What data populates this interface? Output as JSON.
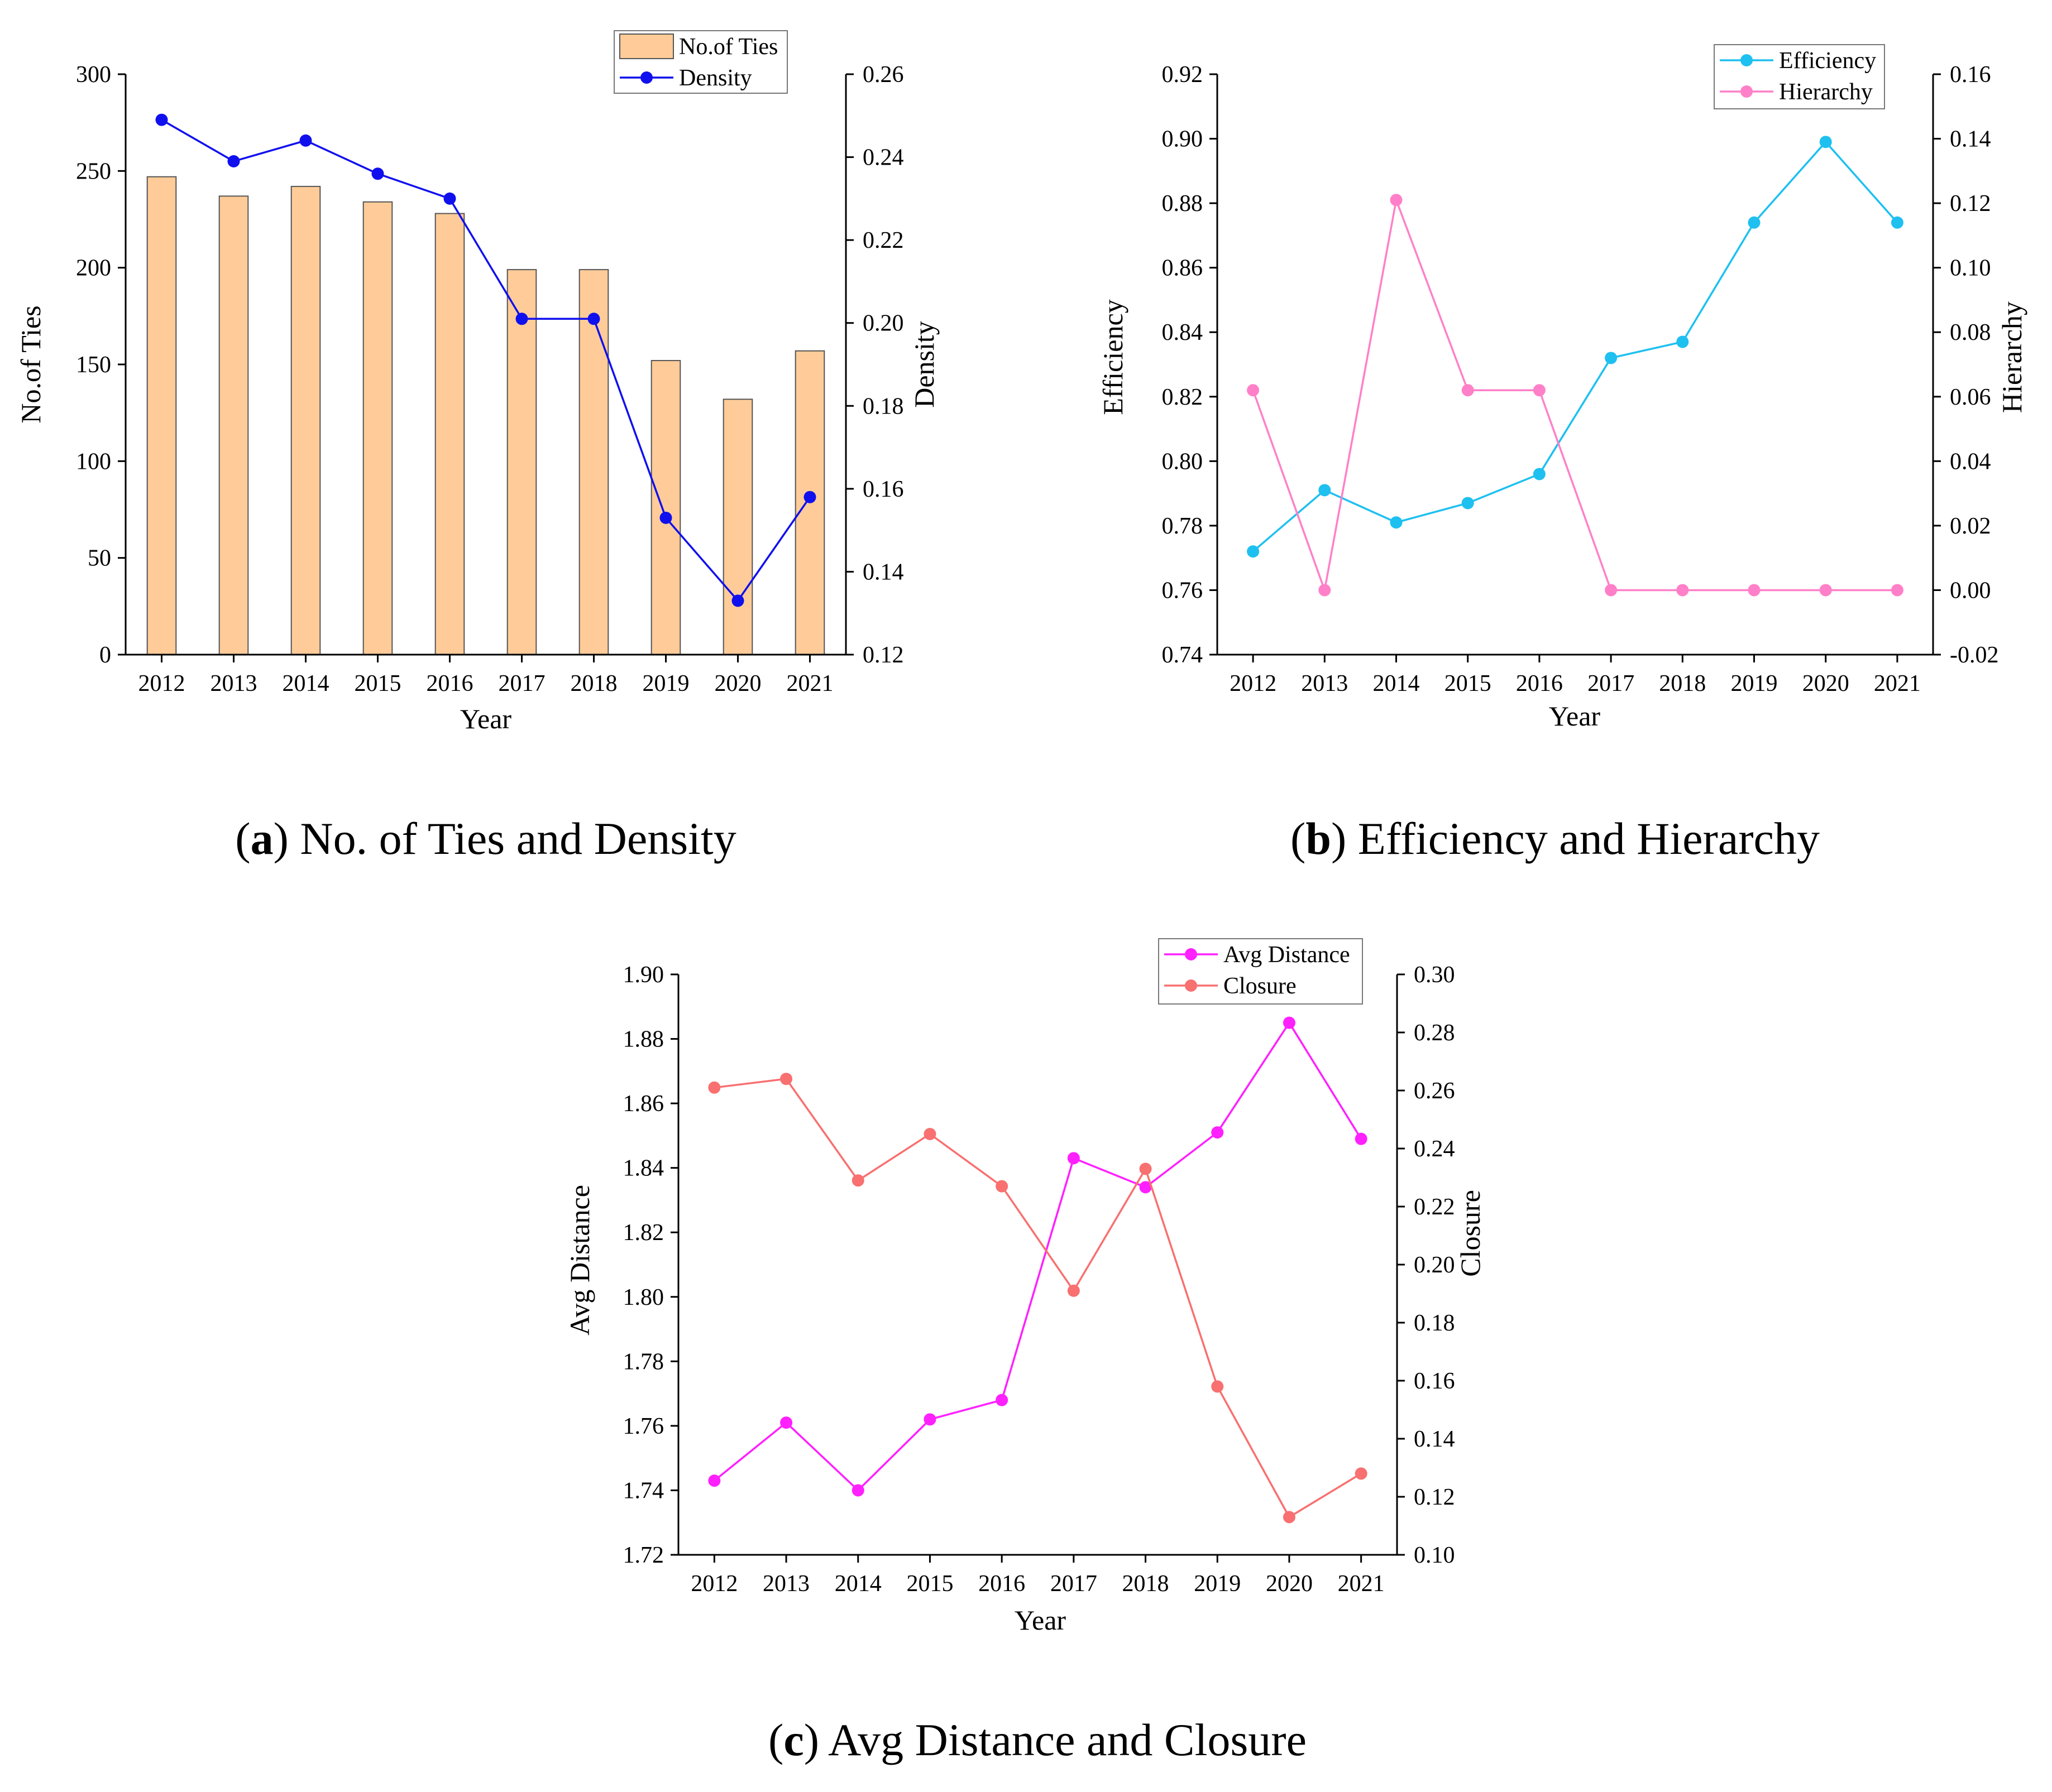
{
  "chart_data": [
    {
      "id": "a",
      "type": "bar+line",
      "caption": {
        "letter": "a",
        "text": "No. of Ties and Density"
      },
      "x": [
        "2012",
        "2013",
        "2014",
        "2015",
        "2016",
        "2017",
        "2018",
        "2019",
        "2020",
        "2021"
      ],
      "xlabel": "Year",
      "y1": {
        "label": "No.of Ties",
        "range": [
          0,
          300
        ],
        "ticks": [
          "0",
          "50",
          "100",
          "150",
          "200",
          "250",
          "300"
        ]
      },
      "y2": {
        "label": "Density",
        "range": [
          0.12,
          0.26
        ],
        "ticks": [
          "0.12",
          "0.14",
          "0.16",
          "0.18",
          "0.20",
          "0.22",
          "0.24",
          "0.26"
        ]
      },
      "series": [
        {
          "name": "No.of Ties",
          "kind": "bar",
          "axis": "y1",
          "color": "#FFCC99",
          "edge": "#555555",
          "values": [
            247,
            237,
            242,
            234,
            228,
            199,
            199,
            152,
            132,
            157
          ]
        },
        {
          "name": "Density",
          "kind": "line",
          "axis": "y2",
          "color": "#1010EE",
          "values": [
            0.249,
            0.239,
            0.244,
            0.236,
            0.23,
            0.201,
            0.201,
            0.153,
            0.133,
            0.158
          ]
        }
      ],
      "legend": "top-right"
    },
    {
      "id": "b",
      "type": "line",
      "caption": {
        "letter": "b",
        "text": "Efficiency and Hierarchy"
      },
      "x": [
        "2012",
        "2013",
        "2014",
        "2015",
        "2016",
        "2017",
        "2018",
        "2019",
        "2020",
        "2021"
      ],
      "xlabel": "Year",
      "y1": {
        "label": "Efficiency",
        "range": [
          0.74,
          0.92
        ],
        "ticks": [
          "0.74",
          "0.76",
          "0.78",
          "0.80",
          "0.82",
          "0.84",
          "0.86",
          "0.88",
          "0.90",
          "0.92"
        ]
      },
      "y2": {
        "label": "Hierarchy",
        "range": [
          -0.02,
          0.16
        ],
        "ticks": [
          "-0.02",
          "0.00",
          "0.02",
          "0.04",
          "0.06",
          "0.08",
          "0.10",
          "0.12",
          "0.14",
          "0.16"
        ]
      },
      "series": [
        {
          "name": "Efficiency",
          "kind": "line",
          "axis": "y1",
          "color": "#1EC0F0",
          "values": [
            0.772,
            0.791,
            0.781,
            0.787,
            0.796,
            0.832,
            0.837,
            0.874,
            0.899,
            0.874
          ]
        },
        {
          "name": "Hierarchy",
          "kind": "line",
          "axis": "y2",
          "color": "#FF80C8",
          "values": [
            0.062,
            0.0,
            0.121,
            0.062,
            0.062,
            0.0,
            0.0,
            0.0,
            0.0,
            0.0
          ]
        }
      ],
      "legend": "top-right"
    },
    {
      "id": "c",
      "type": "line",
      "caption": {
        "letter": "c",
        "text": "Avg Distance and Closure"
      },
      "x": [
        "2012",
        "2013",
        "2014",
        "2015",
        "2016",
        "2017",
        "2018",
        "2019",
        "2020",
        "2021"
      ],
      "xlabel": "Year",
      "y1": {
        "label": "Avg Distance",
        "range": [
          1.72,
          1.9
        ],
        "ticks": [
          "1.72",
          "1.74",
          "1.76",
          "1.78",
          "1.80",
          "1.82",
          "1.84",
          "1.86",
          "1.88",
          "1.90"
        ]
      },
      "y2": {
        "label": "Closure",
        "range": [
          0.1,
          0.3
        ],
        "ticks": [
          "0.10",
          "0.12",
          "0.14",
          "0.16",
          "0.18",
          "0.20",
          "0.22",
          "0.24",
          "0.26",
          "0.28",
          "0.30"
        ]
      },
      "series": [
        {
          "name": "Avg Distance",
          "kind": "line",
          "axis": "y1",
          "color": "#FF20FF",
          "values": [
            1.743,
            1.761,
            1.74,
            1.762,
            1.768,
            1.843,
            1.834,
            1.851,
            1.885,
            1.849
          ]
        },
        {
          "name": "Closure",
          "kind": "line",
          "axis": "y2",
          "color": "#F87070",
          "values": [
            0.261,
            0.264,
            0.229,
            0.245,
            0.227,
            0.191,
            0.233,
            0.158,
            0.113,
            0.128
          ]
        }
      ],
      "legend": "top-right"
    }
  ]
}
